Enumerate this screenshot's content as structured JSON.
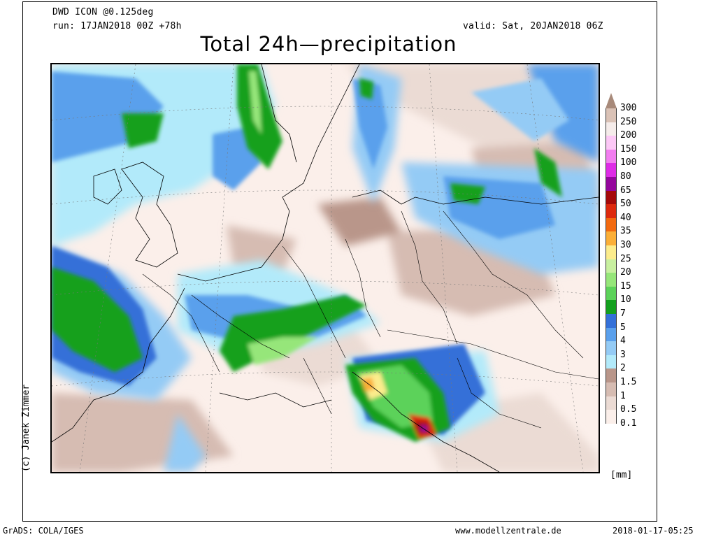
{
  "header": {
    "model": "DWD ICON @0.125deg",
    "run": "run: 17JAN2018 00Z +78h",
    "valid": "valid: Sat, 20JAN2018 06Z",
    "title": "Total 24h—precipitation"
  },
  "credit": "(c) Janek Zimmer",
  "legend": {
    "unit": "[mm]",
    "levels": [
      {
        "label": "300",
        "color": "#a88a7a"
      },
      {
        "label": "250",
        "color": "#dac2b6"
      },
      {
        "label": "200",
        "color": "#f5ecea"
      },
      {
        "label": "150",
        "color": "#fcc8f6"
      },
      {
        "label": "100",
        "color": "#f27ef0"
      },
      {
        "label": "80",
        "color": "#de2ce6"
      },
      {
        "label": "65",
        "color": "#94079c"
      },
      {
        "label": "50",
        "color": "#a50a0a"
      },
      {
        "label": "40",
        "color": "#dd2a0e"
      },
      {
        "label": "35",
        "color": "#f26a10"
      },
      {
        "label": "30",
        "color": "#fbaf38"
      },
      {
        "label": "25",
        "color": "#fcec8c"
      },
      {
        "label": "20",
        "color": "#c8f0a0"
      },
      {
        "label": "15",
        "color": "#96e67a"
      },
      {
        "label": "10",
        "color": "#5cd25a"
      },
      {
        "label": "7",
        "color": "#14a01e"
      },
      {
        "label": "5",
        "color": "#3470d8"
      },
      {
        "label": "4",
        "color": "#5aa0ec"
      },
      {
        "label": "3",
        "color": "#94cbf5"
      },
      {
        "label": "2",
        "color": "#b2eafa"
      },
      {
        "label": "1.5",
        "color": "#b9968a"
      },
      {
        "label": "1",
        "color": "#d6bcb2"
      },
      {
        "label": "0.5",
        "color": "#ebdbd4"
      },
      {
        "label": "0.1",
        "color": "#fbefea"
      }
    ]
  },
  "footer": {
    "left": "GrADS: COLA/IGES",
    "center": "www.modellzentrale.de",
    "right": "2018-01-17-05:25"
  }
}
